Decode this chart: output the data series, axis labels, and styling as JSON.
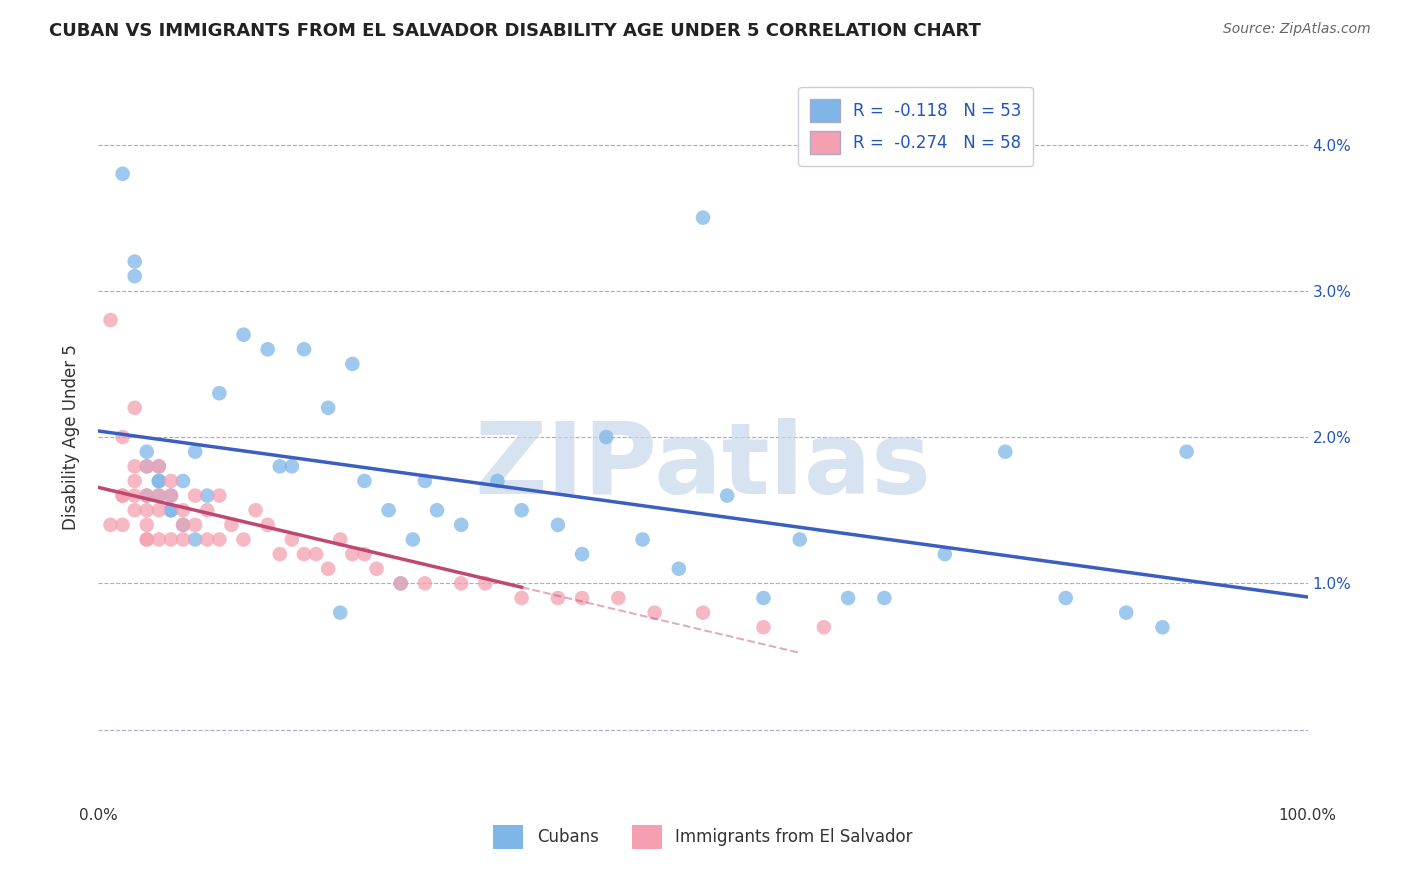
{
  "title": "CUBAN VS IMMIGRANTS FROM EL SALVADOR DISABILITY AGE UNDER 5 CORRELATION CHART",
  "source": "Source: ZipAtlas.com",
  "ylabel": "Disability Age Under 5",
  "y_ticks": [
    0.0,
    0.01,
    0.02,
    0.03,
    0.04
  ],
  "y_tick_labels": [
    "",
    "1.0%",
    "2.0%",
    "3.0%",
    "4.0%"
  ],
  "xmin": 0.0,
  "xmax": 1.0,
  "ymin": -0.005,
  "ymax": 0.045,
  "r_cuban": -0.118,
  "n_cuban": 53,
  "r_salvador": -0.274,
  "n_salvador": 58,
  "legend_label_cuban": "Cubans",
  "legend_label_salvador": "Immigrants from El Salvador",
  "color_cuban": "#7EB6E8",
  "color_salvador": "#F4A0B0",
  "line_color_cuban": "#3B5FC0",
  "line_color_salvador": "#C04870",
  "watermark": "ZIPatlas",
  "cubans_x": [
    0.02,
    0.03,
    0.04,
    0.04,
    0.04,
    0.05,
    0.05,
    0.05,
    0.06,
    0.06,
    0.07,
    0.07,
    0.08,
    0.09,
    0.1,
    0.12,
    0.14,
    0.16,
    0.17,
    0.19,
    0.21,
    0.22,
    0.24,
    0.26,
    0.27,
    0.3,
    0.33,
    0.35,
    0.38,
    0.4,
    0.42,
    0.45,
    0.48,
    0.5,
    0.52,
    0.55,
    0.58,
    0.62,
    0.65,
    0.7,
    0.75,
    0.8,
    0.85,
    0.88,
    0.9,
    0.03,
    0.05,
    0.06,
    0.08,
    0.2,
    0.28,
    0.15,
    0.25
  ],
  "cubans_y": [
    0.038,
    0.032,
    0.019,
    0.018,
    0.016,
    0.018,
    0.017,
    0.016,
    0.016,
    0.015,
    0.017,
    0.014,
    0.019,
    0.016,
    0.023,
    0.027,
    0.026,
    0.018,
    0.026,
    0.022,
    0.025,
    0.017,
    0.015,
    0.013,
    0.017,
    0.014,
    0.017,
    0.015,
    0.014,
    0.012,
    0.02,
    0.013,
    0.011,
    0.035,
    0.016,
    0.009,
    0.013,
    0.009,
    0.009,
    0.012,
    0.019,
    0.009,
    0.008,
    0.007,
    0.019,
    0.031,
    0.017,
    0.015,
    0.013,
    0.008,
    0.015,
    0.018,
    0.01
  ],
  "salvador_x": [
    0.01,
    0.01,
    0.02,
    0.02,
    0.02,
    0.02,
    0.03,
    0.03,
    0.03,
    0.03,
    0.03,
    0.04,
    0.04,
    0.04,
    0.04,
    0.04,
    0.04,
    0.05,
    0.05,
    0.05,
    0.05,
    0.06,
    0.06,
    0.06,
    0.07,
    0.07,
    0.07,
    0.08,
    0.08,
    0.09,
    0.09,
    0.1,
    0.1,
    0.11,
    0.12,
    0.13,
    0.14,
    0.15,
    0.16,
    0.17,
    0.18,
    0.19,
    0.2,
    0.21,
    0.22,
    0.23,
    0.25,
    0.27,
    0.3,
    0.32,
    0.35,
    0.38,
    0.4,
    0.43,
    0.46,
    0.5,
    0.55,
    0.6
  ],
  "salvador_y": [
    0.028,
    0.014,
    0.02,
    0.016,
    0.016,
    0.014,
    0.022,
    0.018,
    0.017,
    0.016,
    0.015,
    0.018,
    0.016,
    0.015,
    0.014,
    0.013,
    0.013,
    0.018,
    0.016,
    0.015,
    0.013,
    0.017,
    0.016,
    0.013,
    0.015,
    0.014,
    0.013,
    0.016,
    0.014,
    0.015,
    0.013,
    0.016,
    0.013,
    0.014,
    0.013,
    0.015,
    0.014,
    0.012,
    0.013,
    0.012,
    0.012,
    0.011,
    0.013,
    0.012,
    0.012,
    0.011,
    0.01,
    0.01,
    0.01,
    0.01,
    0.009,
    0.009,
    0.009,
    0.009,
    0.008,
    0.008,
    0.007,
    0.007
  ]
}
